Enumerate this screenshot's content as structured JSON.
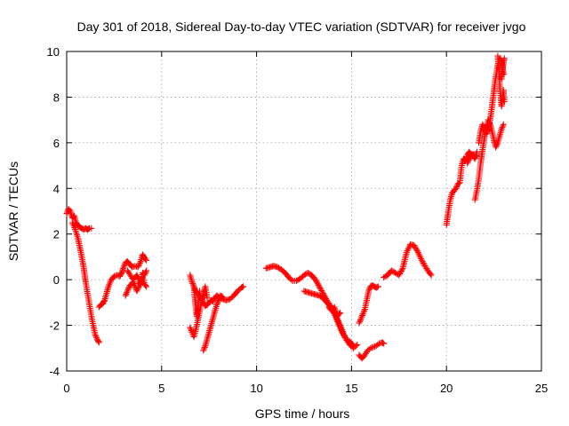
{
  "chart_data": {
    "type": "scatter",
    "title": "Day 301 of 2018, Sidereal Day-to-day VTEC variation (SDTVAR) for receiver jvgo",
    "xlabel": "GPS time / hours",
    "ylabel": "SDTVAR / TECUs",
    "xlim": [
      0,
      25
    ],
    "ylim": [
      -4,
      10
    ],
    "xticks": [
      "0",
      "5",
      "10",
      "15",
      "20",
      "25"
    ],
    "yticks": [
      "-4",
      "-2",
      "0",
      "2",
      "4",
      "6",
      "8",
      "10"
    ],
    "grid": true,
    "marker": "plus",
    "color": "#ff0000",
    "series": [
      {
        "name": "SDTVAR",
        "segments": [
          [
            [
              0.0,
              2.9
            ],
            [
              0.1,
              3.1
            ],
            [
              0.2,
              3.0
            ],
            [
              0.3,
              2.7
            ],
            [
              0.4,
              2.8
            ],
            [
              0.5,
              2.5
            ],
            [
              0.6,
              2.35
            ],
            [
              0.7,
              2.3
            ],
            [
              0.8,
              2.25
            ],
            [
              0.9,
              2.2
            ],
            [
              1.0,
              2.25
            ],
            [
              1.1,
              2.2
            ],
            [
              1.2,
              2.25
            ],
            [
              1.3,
              2.25
            ]
          ],
          [
            [
              0.3,
              2.5
            ],
            [
              0.45,
              2.2
            ],
            [
              0.6,
              1.8
            ],
            [
              0.75,
              1.2
            ],
            [
              0.9,
              0.5
            ],
            [
              1.0,
              -0.1
            ],
            [
              1.1,
              -0.6
            ],
            [
              1.2,
              -1.1
            ],
            [
              1.3,
              -1.6
            ],
            [
              1.4,
              -2.0
            ],
            [
              1.5,
              -2.4
            ],
            [
              1.6,
              -2.6
            ],
            [
              1.7,
              -2.75
            ]
          ],
          [
            [
              1.7,
              -1.2
            ],
            [
              1.8,
              -1.1
            ],
            [
              1.9,
              -1.05
            ],
            [
              2.0,
              -0.9
            ],
            [
              2.1,
              -0.6
            ],
            [
              2.2,
              -0.3
            ],
            [
              2.35,
              0.0
            ],
            [
              2.5,
              0.15
            ],
            [
              2.65,
              0.2
            ],
            [
              2.8,
              0.15
            ],
            [
              2.9,
              0.3
            ],
            [
              3.0,
              0.55
            ],
            [
              3.1,
              0.75
            ],
            [
              3.2,
              0.8
            ],
            [
              3.3,
              0.7
            ],
            [
              3.45,
              0.55
            ],
            [
              3.6,
              0.6
            ],
            [
              3.75,
              0.55
            ],
            [
              3.9,
              0.8
            ],
            [
              4.0,
              1.1
            ],
            [
              4.1,
              0.95
            ],
            [
              4.2,
              0.85
            ]
          ],
          [
            [
              3.1,
              -0.7
            ],
            [
              3.2,
              -0.5
            ],
            [
              3.3,
              -0.3
            ],
            [
              3.4,
              -0.2
            ],
            [
              3.5,
              -0.1
            ],
            [
              3.6,
              -0.3
            ],
            [
              3.7,
              -0.5
            ],
            [
              3.8,
              -0.3
            ],
            [
              3.9,
              -0.1
            ],
            [
              4.0,
              0.1
            ],
            [
              4.1,
              -0.2
            ],
            [
              4.2,
              -0.3
            ]
          ],
          [
            [
              3.2,
              0.4
            ],
            [
              3.35,
              0.2
            ],
            [
              3.5,
              0.0
            ],
            [
              3.6,
              0.1
            ],
            [
              3.7,
              0.2
            ],
            [
              3.8,
              0.0
            ],
            [
              3.9,
              -0.2
            ],
            [
              4.0,
              0.3
            ],
            [
              4.1,
              0.2
            ],
            [
              4.2,
              0.4
            ]
          ],
          [
            [
              6.5,
              0.2
            ],
            [
              6.6,
              -0.1
            ],
            [
              6.7,
              -0.3
            ],
            [
              6.8,
              -0.5
            ],
            [
              6.9,
              -0.6
            ],
            [
              7.0,
              -0.7
            ],
            [
              7.1,
              -0.8
            ],
            [
              7.2,
              -1.0
            ],
            [
              7.3,
              -1.15
            ],
            [
              7.4,
              -1.1
            ],
            [
              7.5,
              -1.0
            ],
            [
              7.6,
              -0.9
            ],
            [
              7.7,
              -0.95
            ],
            [
              7.8,
              -0.8
            ],
            [
              7.9,
              -0.7
            ],
            [
              8.0,
              -0.75
            ],
            [
              8.2,
              -0.85
            ],
            [
              8.4,
              -0.9
            ],
            [
              8.6,
              -0.85
            ],
            [
              8.8,
              -0.7
            ],
            [
              9.0,
              -0.5
            ],
            [
              9.2,
              -0.35
            ],
            [
              9.3,
              -0.3
            ]
          ],
          [
            [
              6.5,
              -2.1
            ],
            [
              6.6,
              -2.3
            ],
            [
              6.7,
              -2.5
            ],
            [
              6.8,
              -2.2
            ],
            [
              6.9,
              -1.8
            ],
            [
              7.0,
              -1.4
            ],
            [
              7.1,
              -1.0
            ],
            [
              7.2,
              -0.6
            ],
            [
              7.3,
              -0.3
            ],
            [
              7.4,
              -0.8
            ]
          ],
          [
            [
              6.7,
              -0.3
            ],
            [
              6.75,
              -0.8
            ],
            [
              6.8,
              -1.2
            ],
            [
              6.85,
              -1.6
            ],
            [
              6.9,
              -1.4
            ],
            [
              6.95,
              -0.9
            ],
            [
              7.0,
              -0.5
            ]
          ],
          [
            [
              7.2,
              -3.1
            ],
            [
              7.3,
              -2.9
            ],
            [
              7.4,
              -2.6
            ],
            [
              7.5,
              -2.3
            ],
            [
              7.6,
              -2.0
            ],
            [
              7.7,
              -1.7
            ],
            [
              7.8,
              -1.4
            ],
            [
              7.9,
              -1.1
            ],
            [
              8.0,
              -0.9
            ],
            [
              8.1,
              -0.7
            ],
            [
              8.2,
              -0.75
            ]
          ],
          [
            [
              10.5,
              0.5
            ],
            [
              10.7,
              0.55
            ],
            [
              10.9,
              0.6
            ],
            [
              11.1,
              0.55
            ],
            [
              11.3,
              0.45
            ],
            [
              11.5,
              0.3
            ],
            [
              11.7,
              0.1
            ],
            [
              11.9,
              -0.05
            ],
            [
              12.1,
              -0.05
            ],
            [
              12.3,
              0.05
            ],
            [
              12.5,
              0.2
            ],
            [
              12.7,
              0.3
            ],
            [
              12.9,
              0.2
            ],
            [
              13.1,
              0.0
            ],
            [
              13.3,
              -0.3
            ],
            [
              13.5,
              -0.6
            ],
            [
              13.7,
              -0.9
            ],
            [
              13.9,
              -1.15
            ],
            [
              14.1,
              -1.4
            ],
            [
              14.3,
              -1.8
            ],
            [
              14.5,
              -2.2
            ],
            [
              14.7,
              -2.6
            ],
            [
              14.9,
              -2.85
            ],
            [
              15.1,
              -3.0
            ],
            [
              15.3,
              -2.85
            ]
          ],
          [
            [
              12.5,
              -0.5
            ],
            [
              12.7,
              -0.55
            ],
            [
              12.9,
              -0.6
            ],
            [
              13.1,
              -0.65
            ],
            [
              13.3,
              -0.7
            ],
            [
              13.5,
              -0.8
            ],
            [
              13.7,
              -1.0
            ],
            [
              13.9,
              -1.2
            ],
            [
              14.1,
              -1.5
            ],
            [
              14.3,
              -1.9
            ],
            [
              14.5,
              -2.3
            ],
            [
              14.7,
              -2.6
            ],
            [
              14.9,
              -2.7
            ],
            [
              15.1,
              -2.9
            ]
          ],
          [
            [
              13.8,
              -1.2
            ],
            [
              13.95,
              -1.35
            ],
            [
              14.1,
              -1.2
            ],
            [
              14.25,
              -1.6
            ],
            [
              14.4,
              -1.45
            ]
          ],
          [
            [
              15.4,
              -3.3
            ],
            [
              15.55,
              -3.45
            ],
            [
              15.7,
              -3.3
            ],
            [
              15.85,
              -3.1
            ],
            [
              16.0,
              -3.0
            ],
            [
              16.15,
              -2.95
            ],
            [
              16.3,
              -2.9
            ],
            [
              16.45,
              -2.8
            ],
            [
              16.6,
              -2.75
            ],
            [
              16.7,
              -2.8
            ]
          ],
          [
            [
              15.4,
              -1.9
            ],
            [
              15.5,
              -1.7
            ],
            [
              15.6,
              -1.5
            ],
            [
              15.7,
              -1.3
            ],
            [
              15.8,
              -0.9
            ],
            [
              15.9,
              -0.5
            ],
            [
              16.0,
              -0.3
            ],
            [
              16.1,
              -0.25
            ],
            [
              16.2,
              -0.3
            ],
            [
              16.3,
              -0.35
            ],
            [
              16.4,
              -0.3
            ]
          ],
          [
            [
              16.7,
              0.1
            ],
            [
              16.9,
              0.2
            ],
            [
              17.1,
              0.4
            ],
            [
              17.3,
              0.3
            ],
            [
              17.5,
              0.2
            ],
            [
              17.7,
              0.5
            ],
            [
              17.9,
              1.2
            ],
            [
              18.1,
              1.55
            ],
            [
              18.3,
              1.5
            ],
            [
              18.5,
              1.2
            ],
            [
              18.7,
              0.85
            ],
            [
              18.9,
              0.55
            ],
            [
              19.1,
              0.3
            ],
            [
              19.2,
              0.2
            ]
          ],
          [
            [
              20.0,
              2.4
            ],
            [
              20.1,
              3.0
            ],
            [
              20.2,
              3.5
            ],
            [
              20.3,
              3.8
            ],
            [
              20.4,
              3.9
            ],
            [
              20.5,
              4.0
            ],
            [
              20.6,
              4.2
            ],
            [
              20.7,
              4.25
            ],
            [
              20.8,
              5.0
            ],
            [
              20.9,
              5.3
            ],
            [
              21.0,
              5.2
            ],
            [
              21.1,
              5.45
            ],
            [
              21.2,
              5.6
            ],
            [
              21.3,
              5.5
            ],
            [
              21.4,
              5.4
            ],
            [
              21.5,
              5.3
            ],
            [
              21.6,
              5.6
            ]
          ],
          [
            [
              21.1,
              5.1
            ],
            [
              21.2,
              5.3
            ],
            [
              21.3,
              5.4
            ],
            [
              21.4,
              5.5
            ],
            [
              21.5,
              5.4
            ],
            [
              21.6,
              5.45
            ]
          ],
          [
            [
              21.5,
              3.5
            ],
            [
              21.6,
              3.9
            ],
            [
              21.7,
              4.4
            ],
            [
              21.8,
              5.1
            ],
            [
              21.9,
              5.7
            ],
            [
              22.0,
              6.2
            ],
            [
              22.1,
              6.7
            ],
            [
              22.2,
              7.0
            ],
            [
              22.3,
              6.8
            ],
            [
              22.4,
              6.5
            ],
            [
              22.5,
              6.1
            ],
            [
              22.6,
              5.8
            ],
            [
              22.7,
              6.0
            ],
            [
              22.8,
              6.3
            ],
            [
              22.9,
              6.6
            ],
            [
              23.0,
              6.8
            ]
          ],
          [
            [
              21.7,
              6.0
            ],
            [
              21.8,
              6.5
            ],
            [
              21.9,
              6.8
            ],
            [
              22.0,
              6.6
            ],
            [
              22.1,
              6.4
            ],
            [
              22.2,
              6.6
            ],
            [
              22.3,
              7.0
            ],
            [
              22.4,
              7.6
            ],
            [
              22.5,
              8.3
            ],
            [
              22.6,
              8.9
            ],
            [
              22.7,
              9.4
            ],
            [
              22.8,
              9.7
            ],
            [
              22.9,
              9.6
            ],
            [
              23.0,
              9.0
            ]
          ],
          [
            [
              22.7,
              9.8
            ],
            [
              22.75,
              9.3
            ],
            [
              22.8,
              8.6
            ],
            [
              22.85,
              8.0
            ],
            [
              22.9,
              7.6
            ],
            [
              22.95,
              7.9
            ],
            [
              23.0,
              8.3
            ],
            [
              23.05,
              7.8
            ]
          ],
          [
            [
              22.9,
              8.8
            ],
            [
              22.95,
              9.2
            ],
            [
              23.0,
              9.5
            ],
            [
              23.05,
              9.7
            ]
          ]
        ]
      }
    ]
  }
}
